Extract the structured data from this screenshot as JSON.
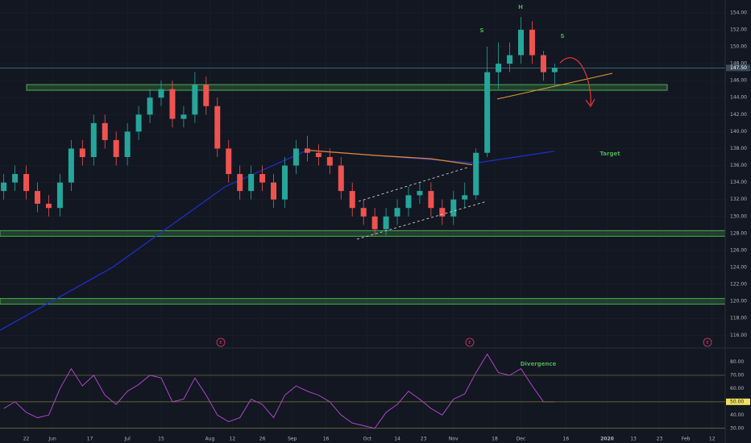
{
  "chart_data": {
    "type": "candlestick",
    "x": [
      1,
      4,
      7,
      10,
      13,
      16,
      19,
      22,
      25,
      28,
      31,
      34,
      37,
      40,
      43,
      46,
      49,
      52,
      55,
      58,
      61,
      64,
      67,
      70,
      73,
      76,
      79,
      82,
      85,
      88,
      91,
      94,
      97,
      100,
      103,
      106,
      109,
      112,
      115,
      118,
      121,
      124,
      127,
      130,
      133,
      136,
      139,
      142,
      145,
      148
    ],
    "open": [
      133,
      134,
      135,
      133,
      131.5,
      131,
      134,
      138,
      137,
      141,
      139,
      137,
      140,
      142,
      144,
      145,
      141.5,
      142,
      145.5,
      143,
      138,
      135,
      133,
      135,
      134,
      132,
      136,
      138,
      137.5,
      137,
      136,
      133,
      131,
      130,
      128.5,
      130,
      131,
      132.5,
      133,
      131,
      130,
      132,
      132.5,
      137.5,
      147,
      148,
      149,
      152,
      149,
      147
    ],
    "high": [
      135,
      136,
      136,
      134,
      132.5,
      135,
      139,
      139,
      142,
      142,
      140,
      141,
      143,
      145,
      146,
      146,
      143,
      147,
      146.5,
      144,
      139,
      136,
      136,
      136,
      135,
      137,
      139,
      139.5,
      138.5,
      138,
      137,
      134,
      132,
      131,
      131,
      132,
      133.5,
      134,
      134,
      132,
      133,
      134,
      138,
      150,
      150.5,
      150.5,
      153.5,
      153,
      149.5,
      148
    ],
    "low": [
      132,
      133,
      132,
      130.5,
      130,
      130,
      133,
      136,
      136,
      138,
      136,
      136,
      139,
      141,
      143,
      140.5,
      140.5,
      141,
      142,
      137,
      134,
      132,
      132,
      133,
      131,
      131,
      135,
      136.5,
      136,
      135,
      132,
      130,
      129,
      127.8,
      127.8,
      129,
      130,
      131.5,
      130,
      129,
      129,
      131,
      132,
      137,
      145,
      147,
      148,
      148,
      146,
      145.5
    ],
    "close": [
      134,
      135,
      133,
      131.5,
      131,
      134,
      138,
      137,
      141,
      139,
      137,
      140,
      142,
      144,
      145,
      141.5,
      142,
      145.5,
      143,
      138,
      135,
      133,
      135,
      134,
      132,
      136,
      138,
      137.5,
      137,
      136,
      133,
      131,
      130,
      128.5,
      130,
      131,
      132.5,
      133,
      131,
      130,
      132,
      132.5,
      137.5,
      147,
      148,
      149,
      152,
      149,
      147,
      147.5
    ],
    "up_color": "#26a69a",
    "down_color": "#ef5350",
    "close_label": "147.50",
    "xlim": [
      0,
      193.5
    ],
    "xticks": [
      {
        "value": 7,
        "label": "22"
      },
      {
        "value": 14,
        "label": "Jun"
      },
      {
        "value": 24,
        "label": "17"
      },
      {
        "value": 34,
        "label": "Jul"
      },
      {
        "value": 43,
        "label": "15"
      },
      {
        "value": 56,
        "label": "Aug"
      },
      {
        "value": 62,
        "label": "12"
      },
      {
        "value": 70,
        "label": "26"
      },
      {
        "value": 78,
        "label": "Sep"
      },
      {
        "value": 87,
        "label": "16"
      },
      {
        "value": 98,
        "label": "Oct"
      },
      {
        "value": 106,
        "label": "14"
      },
      {
        "value": 113,
        "label": "23"
      },
      {
        "value": 121,
        "label": "Nov"
      },
      {
        "value": 132,
        "label": "18"
      },
      {
        "value": 139,
        "label": "Dec"
      },
      {
        "value": 151,
        "label": "16"
      },
      {
        "value": 162,
        "label": "2020"
      },
      {
        "value": 169,
        "label": "13"
      },
      {
        "value": 176,
        "label": "23"
      },
      {
        "value": 183,
        "label": "Feb"
      },
      {
        "value": 190,
        "label": "12"
      }
    ],
    "ylim": [
      114.7,
      155.5
    ],
    "yticks": [
      {
        "value": 116,
        "label": "116.00"
      },
      {
        "value": 118,
        "label": "118.00"
      },
      {
        "value": 120,
        "label": "120.00"
      },
      {
        "value": 122,
        "label": "122.00"
      },
      {
        "value": 124,
        "label": "124.00"
      },
      {
        "value": 126,
        "label": "126.00"
      },
      {
        "value": 128,
        "label": "128.00"
      },
      {
        "value": 130,
        "label": "130.00"
      },
      {
        "value": 132,
        "label": "132.00"
      },
      {
        "value": 134,
        "label": "134.00"
      },
      {
        "value": 136,
        "label": "136.00"
      },
      {
        "value": 138,
        "label": "138.00"
      },
      {
        "value": 140,
        "label": "140.00"
      },
      {
        "value": 142,
        "label": "142.00"
      },
      {
        "value": 144,
        "label": "144.00"
      },
      {
        "value": 146,
        "label": "146.00"
      },
      {
        "value": 148,
        "label": "148.00"
      },
      {
        "value": 150,
        "label": "150.00"
      },
      {
        "value": 152,
        "label": "152.00"
      },
      {
        "value": 154,
        "label": "154.00"
      }
    ],
    "moving_averages": [
      {
        "color": "#1e2ec8",
        "x": [
          0,
          30,
          60,
          82,
          127,
          148
        ],
        "values": [
          116.6,
          124,
          133.5,
          137.8,
          136.3,
          137.7
        ]
      },
      {
        "color": "#e08a2c",
        "x": [
          82,
          100,
          115,
          126
        ],
        "values": [
          137.8,
          137.2,
          136.8,
          136.1
        ]
      }
    ],
    "levels": [
      145.2,
      128,
      120
    ],
    "level_color": "#4caf50",
    "annotations": [
      "H",
      "S",
      "S",
      "Target",
      "Divergence",
      "E",
      "E",
      "E"
    ],
    "rsi": {
      "color": "#b84bd6",
      "values": [
        45,
        50,
        42,
        38,
        40,
        60,
        75,
        62,
        70,
        55,
        48,
        58,
        63,
        70,
        68,
        50,
        52,
        68,
        55,
        40,
        35,
        38,
        52,
        48,
        38,
        55,
        62,
        58,
        55,
        50,
        40,
        34,
        32,
        30,
        42,
        48,
        58,
        52,
        45,
        40,
        52,
        56,
        72,
        86,
        72,
        70,
        75,
        62,
        50,
        50
      ],
      "last_label": "50.00",
      "ylim": [
        25,
        90
      ],
      "yticks": [
        {
          "value": 30,
          "label": "30.00"
        },
        {
          "value": 40,
          "label": "40.00"
        },
        {
          "value": 60,
          "label": "60.00"
        },
        {
          "value": 70,
          "label": "70.00"
        },
        {
          "value": 80,
          "label": "80.00"
        }
      ],
      "bands": [
        70,
        30
      ]
    }
  }
}
